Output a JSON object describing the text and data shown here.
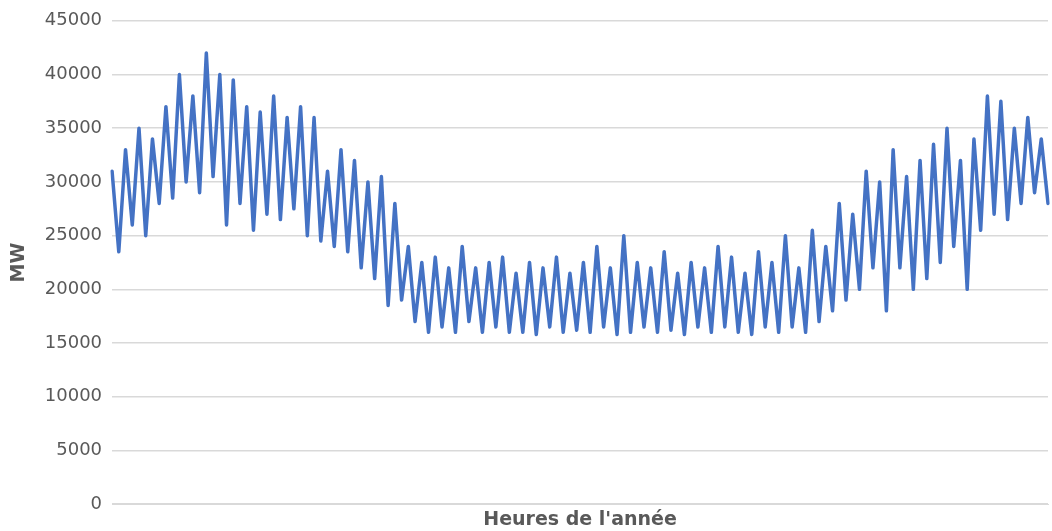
{
  "chart_data": {
    "type": "line",
    "xlabel": "Heures de l'année",
    "ylabel": "MW",
    "ylim": [
      0,
      45000
    ],
    "yticks": [
      0,
      5000,
      10000,
      15000,
      20000,
      25000,
      30000,
      35000,
      40000,
      45000
    ],
    "grid": "y",
    "legend": false,
    "tick_labels": "y",
    "marker": "none",
    "line_style": "solid",
    "categories": [
      null,
      null,
      null,
      null,
      null,
      null,
      null,
      null,
      null,
      null,
      null,
      null,
      null,
      null,
      null,
      null,
      null,
      null,
      null,
      null,
      null,
      null,
      null,
      null,
      null,
      null,
      null,
      null,
      null,
      null,
      null,
      null,
      null,
      null,
      null,
      null,
      null,
      null,
      null,
      null,
      null,
      null,
      null,
      null,
      null,
      null,
      null,
      null,
      null,
      null,
      null,
      null,
      null,
      null,
      null,
      null,
      null,
      null,
      null,
      null,
      null,
      null,
      null,
      null,
      null,
      null,
      null,
      null,
      null,
      null,
      null,
      null,
      null,
      null,
      null,
      null,
      null,
      null,
      null,
      null,
      null,
      null,
      null,
      null,
      null,
      null,
      null,
      null,
      null,
      null,
      null,
      null,
      null,
      null,
      null,
      null,
      null,
      null,
      null,
      null,
      null,
      null,
      null,
      null,
      null,
      null,
      null,
      null,
      null,
      null,
      null,
      null,
      null,
      null,
      null,
      null,
      null,
      null,
      null,
      null,
      null,
      null,
      null,
      null,
      null,
      null,
      null,
      null,
      null,
      null,
      null,
      null,
      null,
      null,
      null,
      null,
      null,
      null,
      null,
      null
    ],
    "series": [
      {
        "color": "#4472c4",
        "values": [
          31000,
          23500,
          33000,
          26000,
          35000,
          25000,
          34000,
          28000,
          37000,
          28500,
          40000,
          30000,
          38000,
          29000,
          42000,
          30500,
          40000,
          26000,
          39500,
          28000,
          37000,
          25500,
          36500,
          27000,
          38000,
          26500,
          36000,
          27500,
          37000,
          25000,
          36000,
          24500,
          31000,
          24000,
          33000,
          23500,
          32000,
          22000,
          30000,
          21000,
          30500,
          18500,
          28000,
          19000,
          24000,
          17000,
          22500,
          16000,
          23000,
          16500,
          22000,
          16000,
          24000,
          17000,
          22000,
          16000,
          22500,
          16500,
          23000,
          16000,
          21500,
          16000,
          22500,
          15800,
          22000,
          16500,
          23000,
          16000,
          21500,
          16200,
          22500,
          16000,
          24000,
          16500,
          22000,
          15800,
          25000,
          16000,
          22500,
          16500,
          22000,
          16000,
          23500,
          16200,
          21500,
          15800,
          22500,
          16500,
          22000,
          16000,
          24000,
          16500,
          23000,
          16000,
          21500,
          15800,
          23500,
          16500,
          22500,
          16000,
          25000,
          16500,
          22000,
          16000,
          25500,
          17000,
          24000,
          18000,
          28000,
          19000,
          27000,
          20000,
          31000,
          22000,
          30000,
          18000,
          33000,
          22000,
          30500,
          20000,
          32000,
          21000,
          33500,
          22500,
          35000,
          24000,
          32000,
          20000,
          34000,
          25500,
          38000,
          27000,
          37500,
          26500,
          35000,
          28000,
          36000,
          29000,
          34000,
          28000
        ]
      }
    ]
  }
}
